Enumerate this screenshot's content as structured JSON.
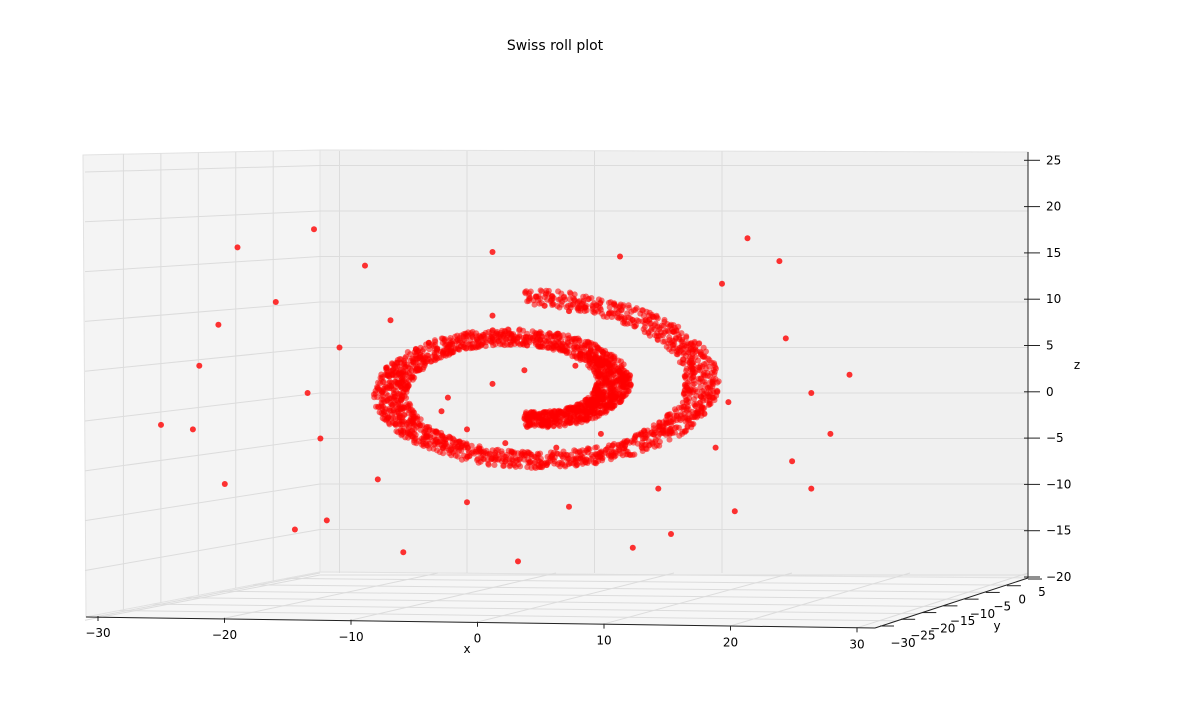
{
  "chart_data": {
    "type": "scatter",
    "projection": "3d",
    "title": "Swiss roll plot",
    "xlabel": "x",
    "ylabel": "y",
    "zlabel": "z",
    "xlim": [
      -30,
      30
    ],
    "ylim": [
      -30,
      5
    ],
    "zlim": [
      -20,
      25
    ],
    "x_ticks": [
      "−30",
      "−20",
      "−10",
      "0",
      "10",
      "20",
      "30"
    ],
    "y_ticks": [
      "−30",
      "−25",
      "−20",
      "−15",
      "−10",
      "−5",
      "0",
      "5"
    ],
    "z_ticks": [
      "−20",
      "−15",
      "−10",
      "−5",
      "0",
      "5",
      "10",
      "15",
      "20",
      "25"
    ],
    "grid": true,
    "point_color": "#ff0000",
    "series": [
      {
        "points_xz": [
          [
            -1.5,
            -0.5
          ],
          [
            2.0,
            1.0
          ],
          [
            4.5,
            2.5
          ],
          [
            8.5,
            3.0
          ],
          [
            10.5,
            2.0
          ],
          [
            12.0,
            -1.0
          ],
          [
            10.5,
            -4.5
          ],
          [
            7.0,
            -6.0
          ],
          [
            3.0,
            -5.5
          ],
          [
            0.0,
            -4.0
          ],
          [
            -2.0,
            -2.0
          ],
          [
            -3.0,
            5.5
          ],
          [
            2.0,
            8.5
          ],
          [
            8.0,
            9.0
          ],
          [
            14.0,
            8.0
          ],
          [
            18.5,
            4.0
          ],
          [
            20.5,
            -1.0
          ],
          [
            19.5,
            -6.0
          ],
          [
            15.0,
            -10.5
          ],
          [
            8.0,
            -12.5
          ],
          [
            0.0,
            -12.0
          ],
          [
            -7.0,
            -9.5
          ],
          [
            -11.5,
            -5.0
          ],
          [
            -12.5,
            0.0
          ],
          [
            -10.0,
            5.0
          ],
          [
            -6.0,
            8.0
          ],
          [
            -15.0,
            10.0
          ],
          [
            -8.0,
            14.0
          ],
          [
            2.0,
            15.5
          ],
          [
            12.0,
            15.0
          ],
          [
            20.0,
            12.0
          ],
          [
            25.0,
            6.0
          ],
          [
            27.0,
            0.0
          ],
          [
            25.5,
            -7.5
          ],
          [
            21.0,
            -13.0
          ],
          [
            13.0,
            -17.0
          ],
          [
            4.0,
            -18.5
          ],
          [
            -5.0,
            -17.5
          ],
          [
            -13.5,
            -15.0
          ],
          [
            -19.0,
            -10.0
          ],
          [
            -21.5,
            -4.0
          ],
          [
            -21.0,
            3.0
          ],
          [
            -19.5,
            7.5
          ],
          [
            -24.0,
            -3.5
          ],
          [
            -18.0,
            16.0
          ],
          [
            -12.0,
            18.0
          ],
          [
            22.0,
            17.0
          ],
          [
            24.5,
            14.5
          ],
          [
            30.0,
            2.0
          ],
          [
            28.5,
            -4.5
          ],
          [
            27.0,
            -10.5
          ],
          [
            -11.0,
            -14.0
          ],
          [
            16.0,
            -15.5
          ]
        ]
      }
    ]
  }
}
